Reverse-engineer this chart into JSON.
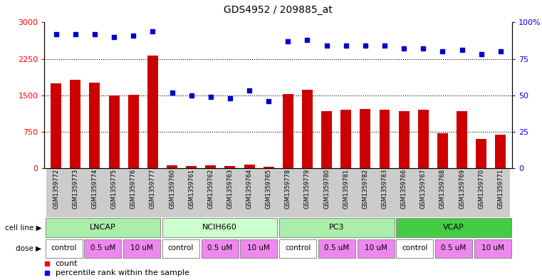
{
  "title": "GDS4952 / 209885_at",
  "samples": [
    "GSM1359772",
    "GSM1359773",
    "GSM1359774",
    "GSM1359775",
    "GSM1359776",
    "GSM1359777",
    "GSM1359760",
    "GSM1359761",
    "GSM1359762",
    "GSM1359763",
    "GSM1359764",
    "GSM1359765",
    "GSM1359778",
    "GSM1359779",
    "GSM1359780",
    "GSM1359781",
    "GSM1359782",
    "GSM1359783",
    "GSM1359766",
    "GSM1359767",
    "GSM1359768",
    "GSM1359769",
    "GSM1359770",
    "GSM1359771"
  ],
  "counts": [
    1750,
    1820,
    1760,
    1500,
    1510,
    2310,
    55,
    45,
    50,
    40,
    75,
    30,
    1530,
    1610,
    1170,
    1200,
    1220,
    1195,
    1170,
    1200,
    720,
    1170,
    600,
    680
  ],
  "percentiles": [
    92,
    92,
    92,
    90,
    91,
    94,
    52,
    50,
    49,
    48,
    53,
    46,
    87,
    88,
    84,
    84,
    84,
    84,
    82,
    82,
    80,
    81,
    78,
    80
  ],
  "cell_lines": [
    {
      "label": "LNCAP",
      "start": 0,
      "end": 6,
      "color": "#aaeeaa"
    },
    {
      "label": "NCIH660",
      "start": 6,
      "end": 12,
      "color": "#ccffcc"
    },
    {
      "label": "PC3",
      "start": 12,
      "end": 18,
      "color": "#aaeeaa"
    },
    {
      "label": "VCAP",
      "start": 18,
      "end": 24,
      "color": "#44cc44"
    }
  ],
  "dose_info": [
    {
      "label": "control",
      "start": 0,
      "end": 2,
      "color": "#ffffff"
    },
    {
      "label": "0.5 uM",
      "start": 2,
      "end": 4,
      "color": "#ee88ee"
    },
    {
      "label": "10 uM",
      "start": 4,
      "end": 6,
      "color": "#ee88ee"
    },
    {
      "label": "control",
      "start": 6,
      "end": 8,
      "color": "#ffffff"
    },
    {
      "label": "0.5 uM",
      "start": 8,
      "end": 10,
      "color": "#ee88ee"
    },
    {
      "label": "10 uM",
      "start": 10,
      "end": 12,
      "color": "#ee88ee"
    },
    {
      "label": "control",
      "start": 12,
      "end": 14,
      "color": "#ffffff"
    },
    {
      "label": "0.5 uM",
      "start": 14,
      "end": 16,
      "color": "#ee88ee"
    },
    {
      "label": "10 uM",
      "start": 16,
      "end": 18,
      "color": "#ee88ee"
    },
    {
      "label": "control",
      "start": 18,
      "end": 20,
      "color": "#ffffff"
    },
    {
      "label": "0.5 uM",
      "start": 20,
      "end": 22,
      "color": "#ee88ee"
    },
    {
      "label": "10 uM",
      "start": 22,
      "end": 24,
      "color": "#ee88ee"
    }
  ],
  "bar_color": "#cc0000",
  "dot_color": "#0000cc",
  "left_ylim": [
    0,
    3000
  ],
  "right_ylim": [
    0,
    100
  ],
  "left_yticks": [
    0,
    750,
    1500,
    2250,
    3000
  ],
  "right_yticks": [
    0,
    25,
    50,
    75,
    100
  ],
  "grid_values": [
    750,
    1500,
    2250
  ],
  "title_fontsize": 10,
  "figwidth": 7.61,
  "figheight": 3.93,
  "dpi": 100
}
